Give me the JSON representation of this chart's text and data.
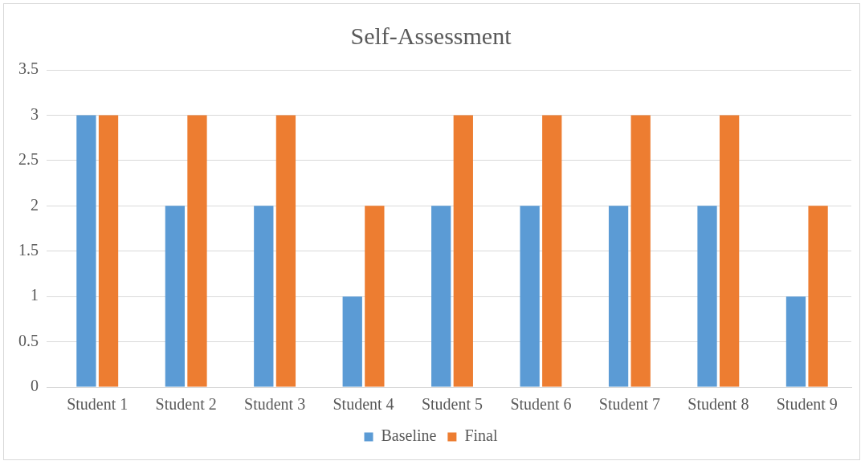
{
  "chart_data": {
    "type": "bar",
    "title": "Self-Assessment",
    "categories": [
      "Student 1",
      "Student 2",
      "Student 3",
      "Student 4",
      "Student 5",
      "Student 6",
      "Student 7",
      "Student 8",
      "Student 9"
    ],
    "series": [
      {
        "name": "Baseline",
        "color": "#5b9bd5",
        "values": [
          3,
          2,
          2,
          1,
          2,
          2,
          2,
          2,
          1
        ]
      },
      {
        "name": "Final",
        "color": "#ed7d31",
        "values": [
          3,
          3,
          3,
          2,
          3,
          3,
          3,
          3,
          2
        ]
      }
    ],
    "ylim": [
      0,
      3.5
    ],
    "yticks": [
      0,
      0.5,
      1,
      1.5,
      2,
      2.5,
      3,
      3.5
    ],
    "grid": "y",
    "legend": "bottom"
  }
}
